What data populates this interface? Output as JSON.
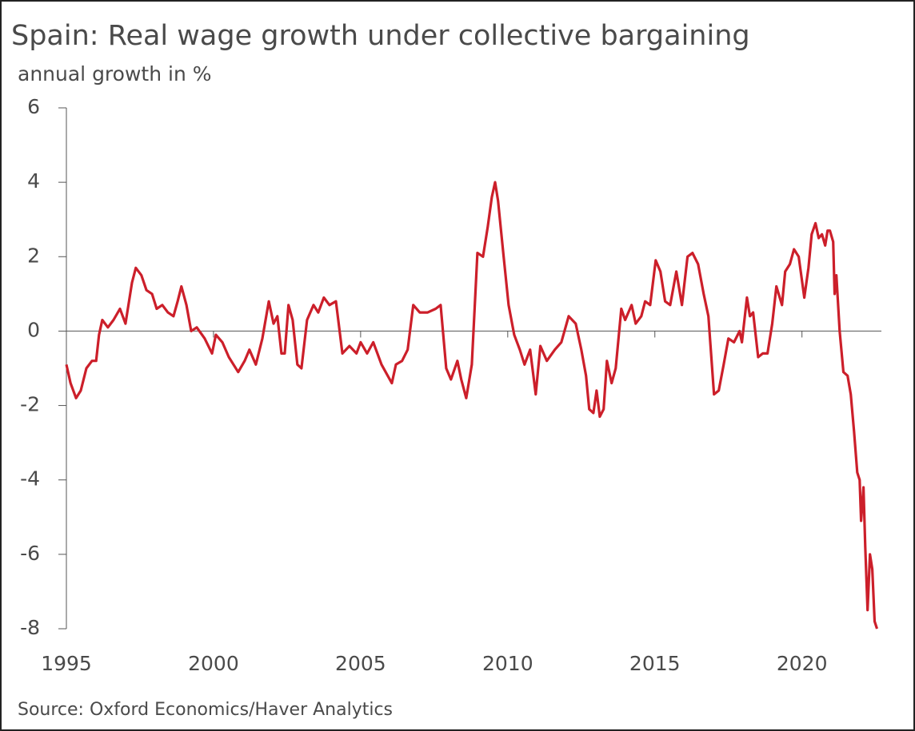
{
  "chart_data": {
    "type": "line",
    "title": "Spain: Real wage growth under collective bargaining",
    "subtitle": "annual growth in %",
    "source": "Source: Oxford Economics/Haver Analytics",
    "xlim": [
      1995,
      2022.7
    ],
    "xticks": [
      1995,
      2000,
      2005,
      2010,
      2015,
      2020
    ],
    "ylim": [
      -8,
      6
    ],
    "yticks": [
      -8,
      -6,
      -4,
      -2,
      0,
      2,
      4,
      6
    ],
    "zero_line": true,
    "series": [
      {
        "name": "Real wage growth",
        "color": "#cc1f2a",
        "x": [
          1995.0,
          1995.14,
          1995.33,
          1995.49,
          1995.68,
          1995.87,
          1996.01,
          1996.11,
          1996.22,
          1996.41,
          1996.6,
          1996.82,
          1997.01,
          1997.23,
          1997.36,
          1997.55,
          1997.72,
          1997.91,
          1998.07,
          1998.26,
          1998.45,
          1998.64,
          1998.78,
          1998.91,
          1999.08,
          1999.24,
          1999.43,
          1999.7,
          1999.95,
          2000.08,
          2000.3,
          2000.52,
          2000.84,
          2001.06,
          2001.22,
          2001.44,
          2001.66,
          2001.88,
          2002.04,
          2002.17,
          2002.31,
          2002.42,
          2002.55,
          2002.69,
          2002.85,
          2002.99,
          2003.18,
          2003.4,
          2003.56,
          2003.75,
          2003.94,
          2004.16,
          2004.38,
          2004.62,
          2004.86,
          2005.0,
          2005.22,
          2005.43,
          2005.71,
          2006.06,
          2006.2,
          2006.41,
          2006.6,
          2006.79,
          2007.01,
          2007.28,
          2007.55,
          2007.72,
          2007.91,
          2008.07,
          2008.29,
          2008.42,
          2008.59,
          2008.78,
          2008.97,
          2009.16,
          2009.32,
          2009.46,
          2009.57,
          2009.67,
          2009.86,
          2010.03,
          2010.22,
          2010.41,
          2010.57,
          2010.76,
          2010.95,
          2011.11,
          2011.33,
          2011.6,
          2011.82,
          2012.07,
          2012.31,
          2012.5,
          2012.66,
          2012.77,
          2012.91,
          2013.02,
          2013.13,
          2013.26,
          2013.37,
          2013.53,
          2013.67,
          2013.86,
          2013.99,
          2014.21,
          2014.35,
          2014.54,
          2014.67,
          2014.84,
          2015.03,
          2015.19,
          2015.35,
          2015.52,
          2015.73,
          2015.92,
          2016.11,
          2016.28,
          2016.47,
          2016.66,
          2016.82,
          2017.01,
          2017.17,
          2017.34,
          2017.5,
          2017.69,
          2017.88,
          2017.96,
          2018.13,
          2018.23,
          2018.34,
          2018.51,
          2018.67,
          2018.83,
          2018.99,
          2019.13,
          2019.32,
          2019.43,
          2019.59,
          2019.73,
          2019.89,
          2020.08,
          2020.22,
          2020.33,
          2020.46,
          2020.57,
          2020.68,
          2020.79,
          2020.87,
          2020.95,
          2021.06,
          2021.11,
          2021.17,
          2021.28,
          2021.41,
          2021.55,
          2021.66,
          2021.77,
          2021.88,
          2021.96,
          2022.01,
          2022.09,
          2022.15,
          2022.23,
          2022.31,
          2022.39,
          2022.47,
          2022.55
        ],
        "values": [
          -0.9,
          -1.4,
          -1.8,
          -1.6,
          -1.0,
          -0.8,
          -0.8,
          -0.1,
          0.3,
          0.1,
          0.3,
          0.6,
          0.2,
          1.3,
          1.7,
          1.5,
          1.1,
          1.0,
          0.6,
          0.7,
          0.5,
          0.4,
          0.8,
          1.2,
          0.7,
          0.0,
          0.1,
          -0.2,
          -0.6,
          -0.1,
          -0.3,
          -0.7,
          -1.1,
          -0.8,
          -0.5,
          -0.9,
          -0.2,
          0.8,
          0.2,
          0.4,
          -0.6,
          -0.6,
          0.7,
          0.3,
          -0.9,
          -1.0,
          0.3,
          0.7,
          0.5,
          0.9,
          0.7,
          0.8,
          -0.6,
          -0.4,
          -0.6,
          -0.3,
          -0.6,
          -0.3,
          -0.9,
          -1.4,
          -0.9,
          -0.8,
          -0.5,
          0.7,
          0.5,
          0.5,
          0.6,
          0.7,
          -1.0,
          -1.3,
          -0.8,
          -1.3,
          -1.8,
          -0.9,
          2.1,
          2.0,
          2.8,
          3.6,
          4.0,
          3.5,
          2.0,
          0.7,
          -0.1,
          -0.5,
          -0.9,
          -0.5,
          -1.7,
          -0.4,
          -0.8,
          -0.5,
          -0.3,
          0.4,
          0.2,
          -0.5,
          -1.2,
          -2.1,
          -2.2,
          -1.6,
          -2.3,
          -2.1,
          -0.8,
          -1.4,
          -1.0,
          0.6,
          0.3,
          0.7,
          0.2,
          0.4,
          0.8,
          0.7,
          1.9,
          1.6,
          0.8,
          0.7,
          1.6,
          0.7,
          2.0,
          2.1,
          1.8,
          1.0,
          0.4,
          -1.7,
          -1.6,
          -0.9,
          -0.2,
          -0.3,
          0.0,
          -0.3,
          0.9,
          0.4,
          0.5,
          -0.7,
          -0.6,
          -0.6,
          0.2,
          1.2,
          0.7,
          1.6,
          1.8,
          2.2,
          2.0,
          0.9,
          1.7,
          2.6,
          2.9,
          2.5,
          2.6,
          2.3,
          2.7,
          2.7,
          2.4,
          1.0,
          1.5,
          0.0,
          -1.1,
          -1.2,
          -1.7,
          -2.7,
          -3.8,
          -4.0,
          -5.1,
          -4.2,
          -5.8,
          -7.5,
          -6.0,
          -6.4,
          -7.8,
          -8.0
        ]
      }
    ]
  }
}
